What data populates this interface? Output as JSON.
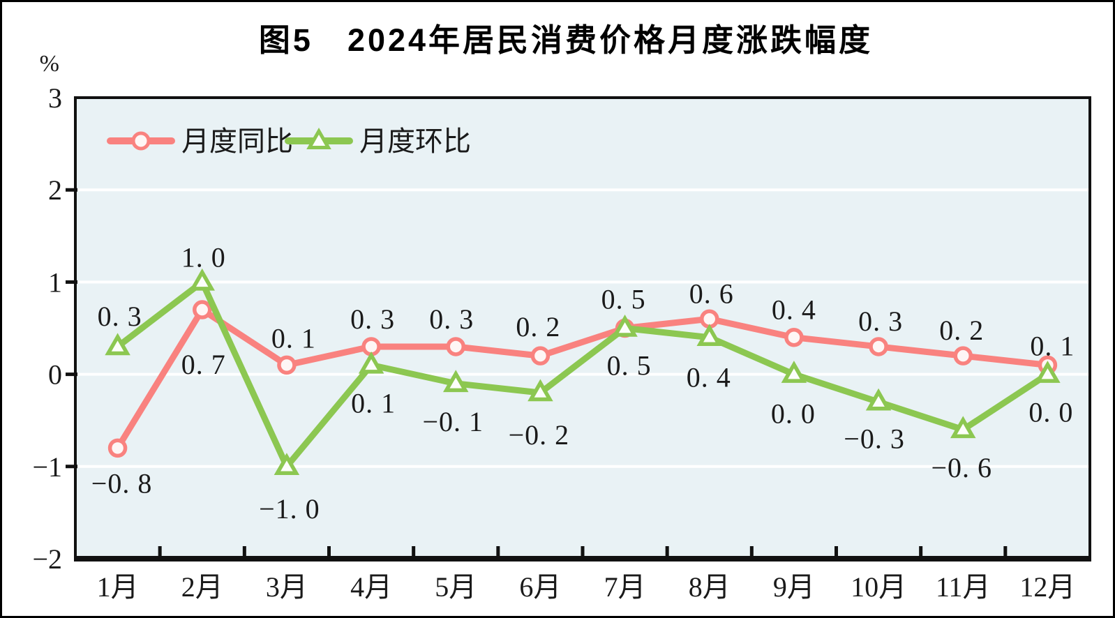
{
  "chart_data": {
    "type": "line",
    "title": "图5　2024年居民消费价格月度涨跌幅度",
    "categories": [
      "1月",
      "2月",
      "3月",
      "4月",
      "5月",
      "6月",
      "7月",
      "8月",
      "9月",
      "10月",
      "11月",
      "12月"
    ],
    "series": [
      {
        "id": "yoy",
        "name": "月度同比",
        "marker": "circle",
        "color": "#f9827f",
        "marker_fill": "#fef6f5",
        "values": [
          -0.8,
          0.7,
          0.1,
          0.3,
          0.3,
          0.2,
          0.5,
          0.6,
          0.4,
          0.3,
          0.2,
          0.1
        ],
        "labels": [
          "−0. 8",
          "0. 7",
          "0. 1",
          "0. 3",
          "0. 3",
          "0. 2",
          "0. 5",
          "0. 6",
          "0. 4",
          "0. 3",
          "0. 2",
          "0. 1"
        ],
        "label_offsets": [
          [
            6,
            64
          ],
          [
            2,
            92
          ],
          [
            10,
            -25
          ],
          [
            2,
            -26
          ],
          [
            -6,
            -26
          ],
          [
            -3,
            -28
          ],
          [
            -2,
            -28
          ],
          [
            3,
            -23
          ],
          [
            0,
            -26
          ],
          [
            3,
            -23
          ],
          [
            -2,
            -23
          ],
          [
            7,
            -14
          ]
        ]
      },
      {
        "id": "mom",
        "name": "月度环比",
        "marker": "triangle",
        "color": "#8cc751",
        "marker_fill": "#fcfefa",
        "values": [
          0.3,
          1.0,
          -1.0,
          0.1,
          -0.1,
          -0.2,
          0.5,
          0.4,
          0.0,
          -0.3,
          -0.6,
          0.0
        ],
        "labels": [
          "0. 3",
          "1. 0",
          "−1. 0",
          "0. 1",
          "−0. 1",
          "−0. 2",
          "0. 5",
          "0. 4",
          "0. 0",
          "−0. 3",
          "−0. 6",
          "0. 0"
        ],
        "label_offsets": [
          [
            3,
            -30
          ],
          [
            2,
            -22
          ],
          [
            4,
            74
          ],
          [
            3,
            68
          ],
          [
            -4,
            68
          ],
          [
            -2,
            74
          ],
          [
            6,
            67
          ],
          [
            -1,
            71
          ],
          [
            -1,
            70
          ],
          [
            -6,
            66
          ],
          [
            -2,
            68
          ],
          [
            5,
            68
          ]
        ]
      }
    ],
    "y_axis": {
      "unit": "%",
      "min": -2,
      "max": 3,
      "ticks": [
        3,
        2,
        1,
        0,
        -1,
        -2
      ],
      "tick_labels": [
        "3",
        "2",
        "1",
        "0",
        "−1",
        "−2"
      ]
    },
    "grid": true,
    "legend_position": "top-left",
    "colors": {
      "plot_bg": "#e9f2f5",
      "grid": "#ffffff",
      "axis": "#111111",
      "text": "#1a1a1a"
    }
  }
}
